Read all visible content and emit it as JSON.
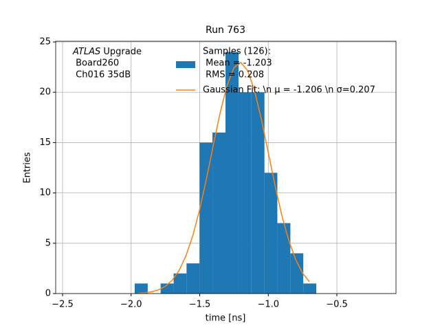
{
  "chart_data": {
    "type": "histogram",
    "title": "Run 763",
    "xlabel": "time [ns]",
    "ylabel": "Entries",
    "annotation": {
      "italic": "ATLAS",
      "lines": [
        " Upgrade",
        " Board260",
        " Ch016 35dB"
      ]
    },
    "bins": [
      -1.974,
      -1.879,
      -1.785,
      -1.69,
      -1.596,
      -1.501,
      -1.407,
      -1.312,
      -1.217,
      -1.123,
      -1.028,
      -0.934,
      -0.839,
      -0.745,
      -0.65
    ],
    "series": [
      {
        "name": "Samples (126):",
        "stats": [
          " Mean = -1.203",
          " RMS = 0.208"
        ],
        "color": "#1f77b4",
        "values": [
          1,
          0,
          1,
          2,
          3,
          15,
          16,
          24,
          20,
          20,
          12,
          7,
          4,
          1
        ]
      },
      {
        "type": "line",
        "name": "Gaussian Fit: \\n μ = -1.206 \\n σ=0.207",
        "color": "#ff7f0e",
        "x": [
          -1.95,
          -1.9,
          -1.85,
          -1.8,
          -1.75,
          -1.7,
          -1.65,
          -1.6,
          -1.55,
          -1.5,
          -1.45,
          -1.4,
          -1.35,
          -1.3,
          -1.25,
          -1.2,
          -1.15,
          -1.1,
          -1.05,
          -1.0,
          -0.95,
          -0.9,
          -0.85,
          -0.8,
          -0.75,
          -0.7
        ],
        "values": [
          0.036,
          0.083,
          0.18,
          0.37,
          0.73,
          1.33,
          2.3,
          3.76,
          5.77,
          8.37,
          11.46,
          14.81,
          18.03,
          20.72,
          22.46,
          22.96,
          22.14,
          20.15,
          17.29,
          14.0,
          10.69,
          7.7,
          5.24,
          3.36,
          2.03,
          1.16
        ]
      }
    ],
    "xlim": [
      -2.55,
      -0.069
    ],
    "ylim": [
      0,
      25.07
    ],
    "xticks": [
      {
        "value": -2.5,
        "label": "−2.5"
      },
      {
        "value": -2.0,
        "label": "−2.0"
      },
      {
        "value": -1.5,
        "label": "−1.5"
      },
      {
        "value": -1.0,
        "label": "−1.0"
      },
      {
        "value": -0.5,
        "label": "−0.5"
      }
    ],
    "yticks": [
      0,
      5,
      10,
      15,
      20,
      25
    ],
    "grid": true
  }
}
